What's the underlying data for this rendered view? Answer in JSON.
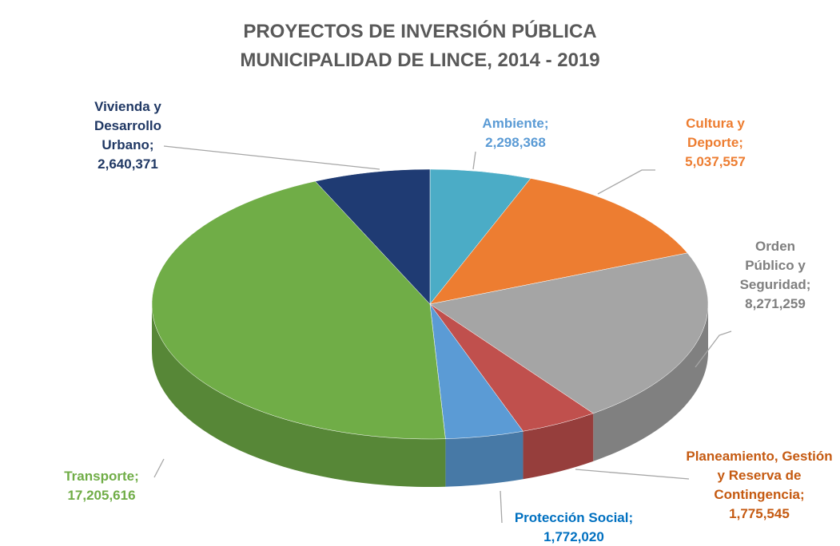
{
  "chart_data": {
    "type": "pie3d",
    "title": [
      "PROYECTOS DE INVERSIÓN PÚBLICA",
      "MUNICIPALIDAD DE LINCE, 2014 - 2019"
    ],
    "label_separator": ";",
    "categories": [
      "Ambiente",
      "Cultura y Deporte",
      "Orden Público y Seguridad",
      "Planeamiento, Gestión y Reserva de Contingencia",
      "Protección Social",
      "Transporte",
      "Vivienda y Desarrollo Urbano"
    ],
    "values": [
      2298368,
      5037557,
      8271259,
      1775545,
      1772020,
      17205616,
      2640371
    ],
    "value_labels": [
      "2,298,368",
      "5,037,557",
      "8,271,259",
      "1,775,545",
      "1,772,020",
      "17,205,616",
      "2,640,371"
    ],
    "colors": [
      "#4bacc6",
      "#ed7d31",
      "#a5a5a5",
      "#c0504d",
      "#5b9bd5",
      "#70ad47",
      "#1f3b73"
    ],
    "label_colors": [
      "#5b9bd5",
      "#ed7d31",
      "#7f7f7f",
      "#c55a11",
      "#0070c0",
      "#70ad47",
      "#203864"
    ]
  }
}
